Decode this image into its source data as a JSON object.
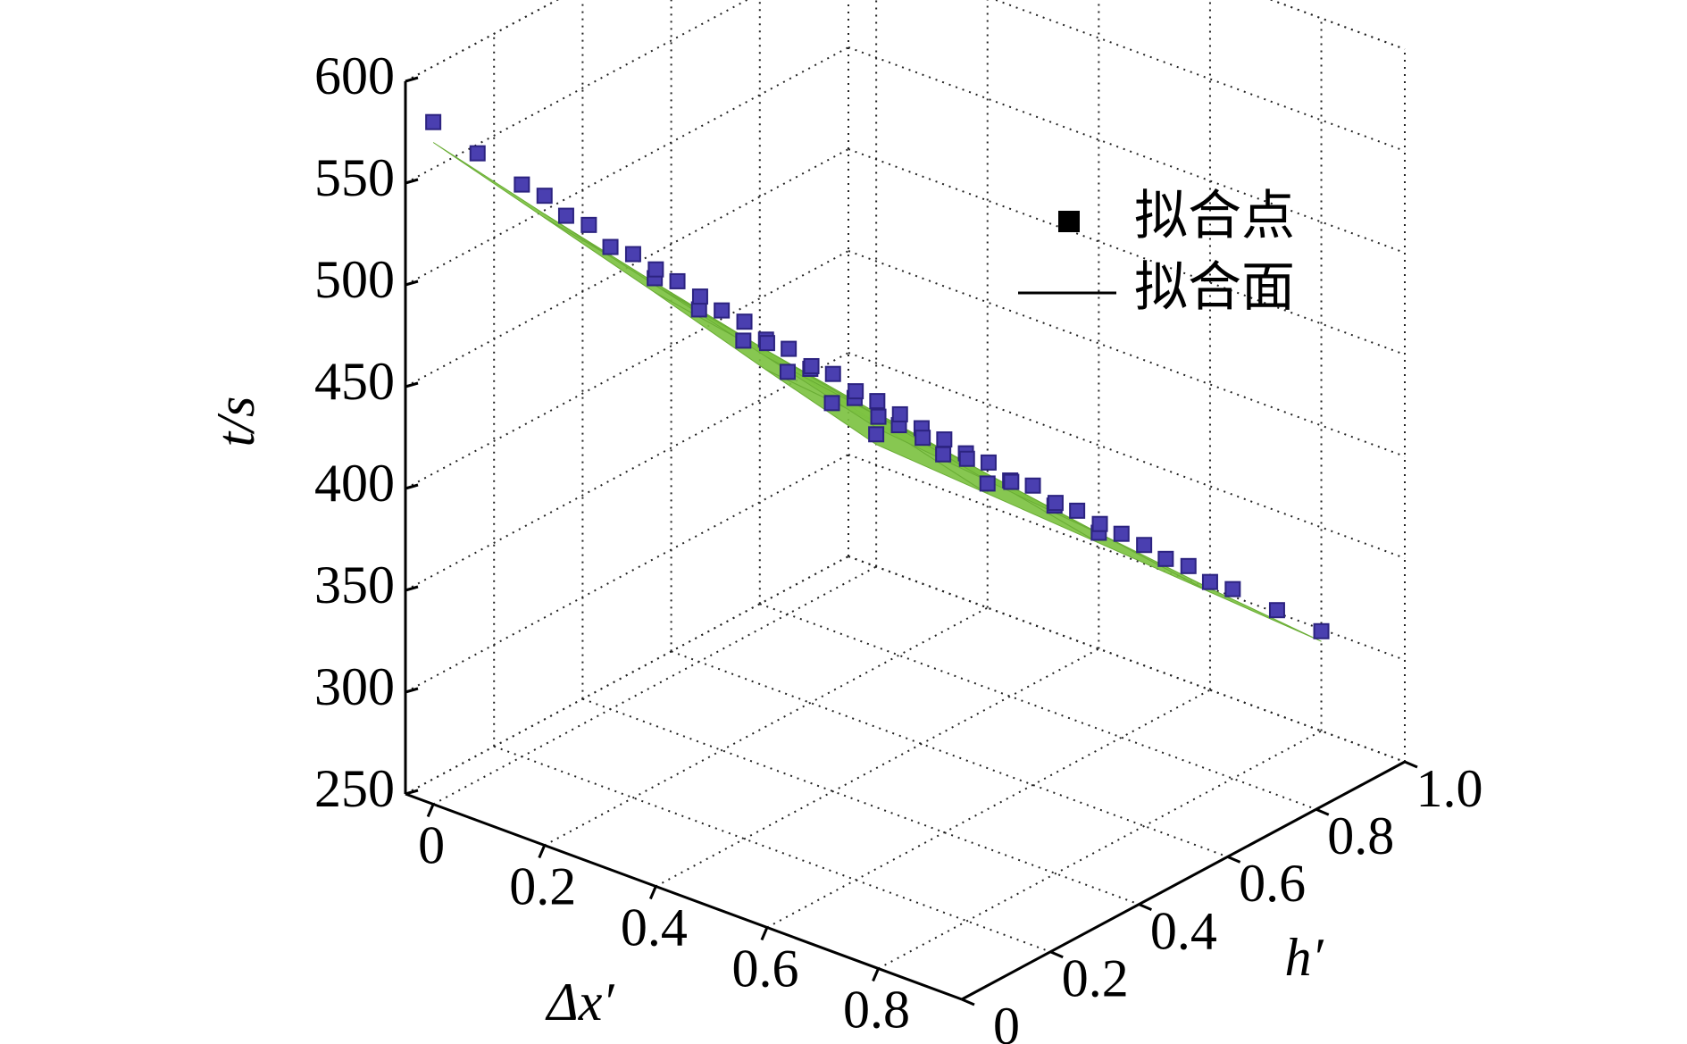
{
  "chart_data": {
    "type": "scatter3d",
    "xlabel": "Δx′",
    "ylabel": "h′",
    "zlabel": "t/s",
    "xlim": [
      -0.05,
      0.95
    ],
    "ylim": [
      0,
      1
    ],
    "zlim": [
      250,
      600
    ],
    "xticks": [
      0,
      0.2,
      0.4,
      0.6,
      0.8
    ],
    "yticks": [
      0,
      0.2,
      0.4,
      0.6,
      0.8,
      {
        "value": 1,
        "label": "1.0"
      }
    ],
    "zticks": [
      250,
      300,
      350,
      400,
      450,
      500,
      550,
      600
    ],
    "grid": true,
    "legend": "upper right",
    "series": [
      {
        "name": "拟合点",
        "type": "scatter",
        "color": "#4a3fb0",
        "x": [
          0,
          0,
          0,
          0,
          0,
          0,
          0,
          0,
          0,
          0,
          0,
          0.2,
          0.2,
          0.2,
          0.2,
          0.2,
          0.2,
          0.2,
          0.2,
          0.2,
          0.2,
          0.2,
          0.4,
          0.4,
          0.4,
          0.4,
          0.4,
          0.4,
          0.4,
          0.4,
          0.4,
          0.4,
          0.4,
          0.6,
          0.6,
          0.6,
          0.6,
          0.6,
          0.6,
          0.6,
          0.6,
          0.6,
          0.6,
          0.6,
          0.8,
          0.8,
          0.8,
          0.8,
          0.8,
          0.8,
          0.8,
          0.8,
          0.8,
          0.8,
          0.8
        ],
        "y": [
          0,
          0.1,
          0.2,
          0.3,
          0.4,
          0.5,
          0.6,
          0.7,
          0.8,
          0.9,
          1,
          0,
          0.1,
          0.2,
          0.3,
          0.4,
          0.5,
          0.6,
          0.7,
          0.8,
          0.9,
          1,
          0,
          0.1,
          0.2,
          0.3,
          0.4,
          0.5,
          0.6,
          0.7,
          0.8,
          0.9,
          1,
          0,
          0.1,
          0.2,
          0.3,
          0.4,
          0.5,
          0.6,
          0.7,
          0.8,
          0.9,
          1,
          0,
          0.1,
          0.2,
          0.3,
          0.4,
          0.5,
          0.6,
          0.7,
          0.8,
          0.9,
          1
        ],
        "z": [
          585,
          558,
          531,
          504,
          477,
          450,
          423,
          396,
          369,
          342,
          315,
          569,
          543,
          517,
          492,
          466,
          440,
          414,
          388,
          363,
          337,
          311,
          553,
          528,
          504,
          479,
          455,
          430,
          405,
          381,
          356,
          332,
          307,
          537,
          514,
          490,
          467,
          443,
          420,
          397,
          373,
          350,
          326,
          303,
          521,
          499,
          477,
          454,
          432,
          410,
          388,
          366,
          343,
          321,
          299
        ]
      },
      {
        "name": "拟合面",
        "type": "surface",
        "color": "#7dc242",
        "x": [
          0,
          0.2,
          0.4,
          0.6,
          0.8
        ],
        "y": [
          0,
          0.25,
          0.5,
          0.75,
          1
        ],
        "z": [
          [
            575,
            509,
            443,
            376,
            310
          ],
          [
            560,
            497,
            433,
            370,
            306
          ],
          [
            545,
            484,
            424,
            363,
            302
          ],
          [
            530,
            472,
            414,
            356,
            298
          ],
          [
            515,
            460,
            405,
            349,
            294
          ]
        ]
      }
    ]
  }
}
